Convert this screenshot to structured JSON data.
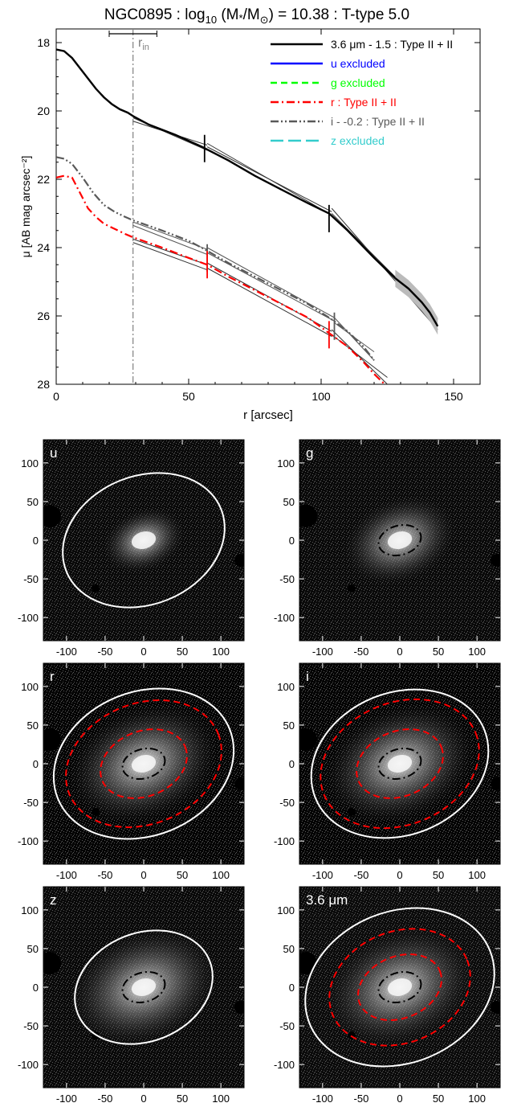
{
  "title": {
    "galaxy": "NGC0895",
    "log_prefix": "log",
    "log_sub": "10",
    "mass_expr": " (M",
    "mass_star": "*",
    "mass_mid": "/M",
    "sun_symbol": "⊙",
    "mass_tail": ") = 10.38 : T-type 5.0",
    "sep": " : "
  },
  "colors": {
    "ch36": "#000000",
    "u": "#0000ff",
    "g": "#00ff00",
    "r": "#ff0000",
    "i": "#595959",
    "z": "#33cccc",
    "ellipse_outer": "#ffffff",
    "ellipse_break": "#ff0000",
    "ellipse_bar": "#000000"
  },
  "chart_data": [
    {
      "type": "line",
      "xlabel": "r [arcsec]",
      "ylabel": "μ [AB mag arcsec⁻²]",
      "xlim": [
        0,
        160
      ],
      "ylim": [
        28,
        17.6
      ],
      "x_ticks": [
        0,
        50,
        100,
        150
      ],
      "y_ticks": [
        18,
        20,
        22,
        24,
        26,
        28
      ],
      "rin_label": "r",
      "rin_sub": "in",
      "rin_x": 29,
      "rin_bar": [
        20,
        38
      ],
      "legend_position": "top-right",
      "legend": [
        {
          "key": "ch36",
          "text": "3.6 μm - 1.5 : Type II + II",
          "style": "solid"
        },
        {
          "key": "u",
          "text": "u excluded",
          "style": "solid"
        },
        {
          "key": "g",
          "text": "g excluded",
          "style": "dashed"
        },
        {
          "key": "r",
          "text": "r : Type II + II",
          "style": "dashdot"
        },
        {
          "key": "i",
          "text": "i - -0.2 : Type II + II",
          "style": "dashdotdot"
        },
        {
          "key": "z",
          "text": "z excluded",
          "style": "longdash"
        }
      ],
      "series": [
        {
          "key": "ch36",
          "x": [
            0,
            3,
            6,
            9,
            12,
            15,
            18,
            21,
            24,
            27,
            29,
            35,
            45,
            55,
            65,
            75,
            85,
            95,
            103,
            110,
            120,
            128,
            133,
            138,
            141,
            144
          ],
          "y": [
            18.2,
            18.25,
            18.45,
            18.75,
            19.05,
            19.35,
            19.6,
            19.8,
            19.95,
            20.05,
            20.15,
            20.4,
            20.7,
            21.05,
            21.45,
            21.9,
            22.3,
            22.7,
            23.0,
            23.5,
            24.3,
            24.9,
            25.2,
            25.6,
            25.9,
            26.3
          ]
        },
        {
          "key": "i",
          "x": [
            0,
            3,
            6,
            10,
            14,
            18,
            22,
            26,
            29,
            40,
            50,
            56,
            65,
            75,
            85,
            95,
            104,
            110,
            116,
            120
          ],
          "y": [
            21.35,
            21.4,
            21.55,
            21.95,
            22.4,
            22.75,
            22.95,
            23.1,
            23.2,
            23.5,
            23.8,
            24.05,
            24.45,
            24.85,
            25.25,
            25.65,
            26.1,
            26.45,
            26.9,
            27.3
          ]
        },
        {
          "key": "r",
          "x": [
            0,
            3,
            6,
            9,
            12,
            15,
            18,
            22,
            26,
            29,
            40,
            50,
            57,
            65,
            75,
            85,
            95,
            103,
            110,
            116,
            120,
            124
          ],
          "y": [
            21.95,
            21.9,
            21.95,
            22.4,
            22.85,
            23.1,
            23.3,
            23.45,
            23.6,
            23.7,
            24.0,
            24.3,
            24.5,
            24.85,
            25.25,
            25.65,
            26.05,
            26.5,
            26.9,
            27.35,
            27.7,
            28.0
          ]
        }
      ],
      "fits": [
        {
          "key": "ch36",
          "segments": [
            [
              29,
              20.2,
              57,
              21.15
            ],
            [
              29,
              20.3,
              57,
              21.0
            ],
            [
              57,
              20.95,
              104,
              23.05
            ],
            [
              57,
              21.05,
              104,
              22.95
            ],
            [
              104,
              22.85,
              144,
              26.4
            ],
            [
              104,
              23.0,
              144,
              26.1
            ]
          ]
        },
        {
          "key": "i",
          "segments": [
            [
              29,
              23.25,
              57,
              24.05
            ],
            [
              29,
              23.35,
              57,
              24.2
            ],
            [
              57,
              24.0,
              105,
              26.05
            ],
            [
              57,
              24.15,
              105,
              26.15
            ],
            [
              105,
              26.05,
              120,
              27.3
            ],
            [
              105,
              26.2,
              120,
              27.05
            ]
          ]
        },
        {
          "key": "r",
          "segments": [
            [
              29,
              23.75,
              57,
              24.5
            ],
            [
              29,
              23.85,
              57,
              24.65
            ],
            [
              57,
              24.45,
              104,
              26.45
            ],
            [
              57,
              24.6,
              104,
              26.6
            ],
            [
              104,
              26.4,
              125,
              28.0
            ],
            [
              104,
              26.55,
              125,
              27.8
            ]
          ]
        }
      ],
      "breaks": [
        {
          "key": "ch36",
          "x": 56,
          "y": 21.1
        },
        {
          "key": "ch36",
          "x": 103,
          "y": 23.15
        },
        {
          "key": "i",
          "x": 57,
          "y": 24.3
        },
        {
          "key": "i",
          "x": 105,
          "y": 26.3
        },
        {
          "key": "r",
          "x": 57,
          "y": 24.5
        },
        {
          "key": "r",
          "x": 103,
          "y": 26.55
        }
      ]
    },
    {
      "type": "heatmap",
      "label": "u",
      "xlim": [
        -130,
        130
      ],
      "ylim": [
        -130,
        130
      ],
      "ticks": [
        -100,
        -50,
        0,
        50,
        100
      ],
      "ellipses": [
        {
          "a": 108,
          "b": 83,
          "pa": -22,
          "color_key": "ellipse_outer",
          "style": "solid"
        }
      ]
    },
    {
      "type": "heatmap",
      "label": "g",
      "xlim": [
        -130,
        130
      ],
      "ylim": [
        -130,
        130
      ],
      "ticks": [
        -100,
        -50,
        0,
        50,
        100
      ],
      "ellipses": [
        {
          "a": 28,
          "b": 19,
          "pa": -15,
          "color_key": "ellipse_bar",
          "style": "dashdot"
        }
      ]
    },
    {
      "type": "heatmap",
      "label": "r",
      "xlim": [
        -130,
        130
      ],
      "ylim": [
        -130,
        130
      ],
      "ticks": [
        -100,
        -50,
        0,
        50,
        100
      ],
      "ellipses": [
        {
          "a": 120,
          "b": 93,
          "pa": -22,
          "color_key": "ellipse_outer",
          "style": "solid"
        },
        {
          "a": 104,
          "b": 78,
          "pa": -22,
          "color_key": "ellipse_break",
          "style": "dashed"
        },
        {
          "a": 58,
          "b": 42,
          "pa": -22,
          "color_key": "ellipse_break",
          "style": "dashed"
        },
        {
          "a": 28,
          "b": 19,
          "pa": -15,
          "color_key": "ellipse_bar",
          "style": "dashdot"
        }
      ]
    },
    {
      "type": "heatmap",
      "label": "i",
      "xlim": [
        -130,
        130
      ],
      "ylim": [
        -130,
        130
      ],
      "ticks": [
        -100,
        -50,
        0,
        50,
        100
      ],
      "ellipses": [
        {
          "a": 118,
          "b": 92,
          "pa": -22,
          "color_key": "ellipse_outer",
          "style": "solid"
        },
        {
          "a": 106,
          "b": 79,
          "pa": -22,
          "color_key": "ellipse_break",
          "style": "dashed"
        },
        {
          "a": 58,
          "b": 42,
          "pa": -22,
          "color_key": "ellipse_break",
          "style": "dashed"
        },
        {
          "a": 28,
          "b": 19,
          "pa": -15,
          "color_key": "ellipse_bar",
          "style": "dashdot"
        }
      ]
    },
    {
      "type": "heatmap",
      "label": "z",
      "xlim": [
        -130,
        130
      ],
      "ylim": [
        -130,
        130
      ],
      "ticks": [
        -100,
        -50,
        0,
        50,
        100
      ],
      "ellipses": [
        {
          "a": 92,
          "b": 70,
          "pa": -22,
          "color_key": "ellipse_outer",
          "style": "solid"
        },
        {
          "a": 28,
          "b": 19,
          "pa": -15,
          "color_key": "ellipse_bar",
          "style": "dashdot"
        }
      ]
    },
    {
      "type": "heatmap",
      "label": "3.6 μm",
      "xlim": [
        -130,
        130
      ],
      "ylim": [
        -130,
        130
      ],
      "ticks": [
        -100,
        -50,
        0,
        50,
        100
      ],
      "ellipses": [
        {
          "a": 126,
          "b": 98,
          "pa": -22,
          "color_key": "ellipse_outer",
          "style": "solid"
        },
        {
          "a": 94,
          "b": 72,
          "pa": -22,
          "color_key": "ellipse_break",
          "style": "dashed"
        },
        {
          "a": 56,
          "b": 40,
          "pa": -22,
          "color_key": "ellipse_break",
          "style": "dashed"
        },
        {
          "a": 28,
          "b": 19,
          "pa": -15,
          "color_key": "ellipse_bar",
          "style": "dashdot"
        }
      ]
    }
  ]
}
